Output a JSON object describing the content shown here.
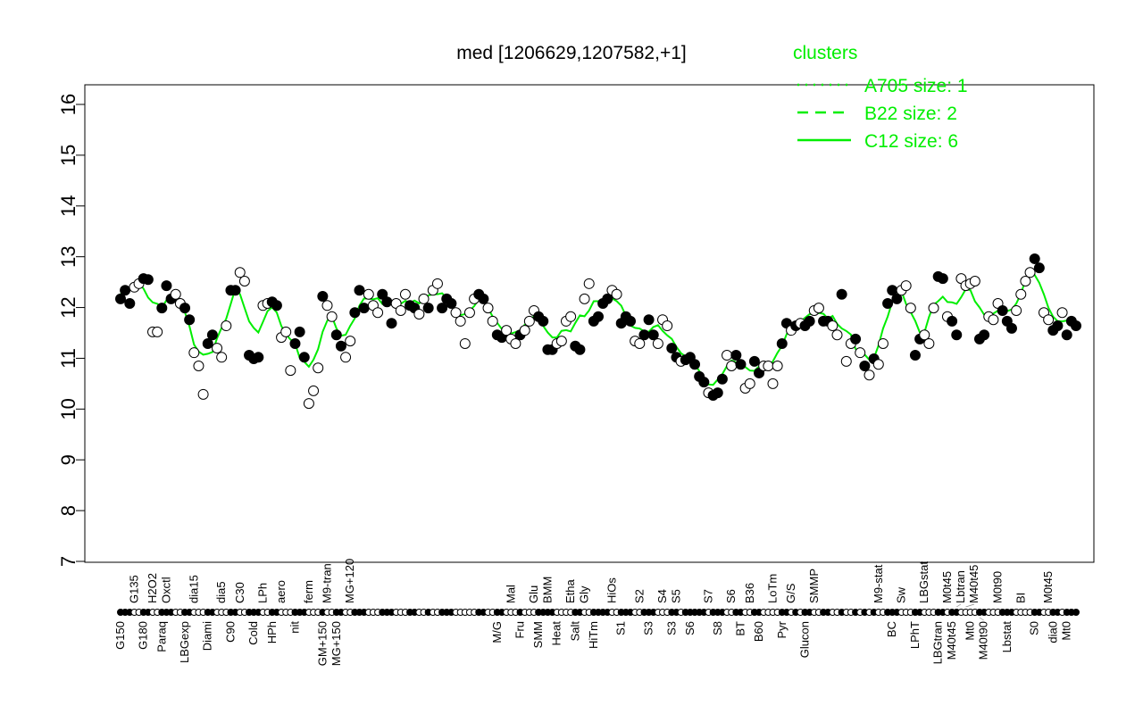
{
  "chart_data": {
    "type": "scatter",
    "title": "med [1206629,1207582,+1]",
    "xlabel": "",
    "ylabel": "",
    "ylim": [
      7,
      16
    ],
    "yticks": [
      7,
      8,
      9,
      10,
      11,
      12,
      13,
      14,
      15,
      16
    ],
    "grid": false,
    "legend": {
      "title": "clusters",
      "placement": "top-right",
      "color": "#00ee00",
      "entries": [
        {
          "label": "A705 size: 1",
          "style": "dotted"
        },
        {
          "label": "B22 size: 2",
          "style": "dashed"
        },
        {
          "label": "C12 size: 6",
          "style": "solid"
        }
      ]
    },
    "line_color": "#00ee00",
    "points": [
      {
        "v": 12.17,
        "f": 1,
        "b": "G150"
      },
      {
        "v": 12.34,
        "f": 1
      },
      {
        "v": 12.08,
        "f": 1
      },
      {
        "v": 12.4,
        "f": 0,
        "t": "G135"
      },
      {
        "v": 12.47,
        "f": 0
      },
      {
        "v": 12.57,
        "f": 1,
        "b": "G180"
      },
      {
        "v": 12.55,
        "f": 1
      },
      {
        "v": 11.52,
        "f": 0,
        "t": "H2O2"
      },
      {
        "v": 11.52,
        "f": 0
      },
      {
        "v": 11.99,
        "f": 1,
        "b": "Paraq"
      },
      {
        "v": 12.43,
        "f": 1,
        "t": "Oxctl"
      },
      {
        "v": 12.17,
        "f": 1
      },
      {
        "v": 12.26,
        "f": 0
      },
      {
        "v": 12.08,
        "f": 0
      },
      {
        "v": 11.99,
        "f": 1,
        "b": "LBGexp"
      },
      {
        "v": 11.76,
        "f": 1
      },
      {
        "v": 11.11,
        "f": 0,
        "t": "dia15"
      },
      {
        "v": 10.85,
        "f": 0
      },
      {
        "v": 10.29,
        "f": 0
      },
      {
        "v": 11.29,
        "f": 1,
        "b": "Diami"
      },
      {
        "v": 11.46,
        "f": 1
      },
      {
        "v": 11.2,
        "f": 0
      },
      {
        "v": 11.02,
        "f": 0,
        "t": "dia5"
      },
      {
        "v": 11.64,
        "f": 0
      },
      {
        "v": 12.34,
        "f": 1,
        "b": "C90"
      },
      {
        "v": 12.34,
        "f": 1
      },
      {
        "v": 12.69,
        "f": 0,
        "t": "C30"
      },
      {
        "v": 12.52,
        "f": 0
      },
      {
        "v": 11.06,
        "f": 1
      },
      {
        "v": 10.99,
        "f": 1,
        "b": "Cold"
      },
      {
        "v": 11.02,
        "f": 1
      },
      {
        "v": 12.04,
        "f": 0,
        "t": "LPh"
      },
      {
        "v": 12.08,
        "f": 0
      },
      {
        "v": 12.11,
        "f": 1,
        "b": "HPh"
      },
      {
        "v": 12.04,
        "f": 1
      },
      {
        "v": 11.41,
        "f": 0,
        "t": "aero"
      },
      {
        "v": 11.52,
        "f": 0
      },
      {
        "v": 10.76,
        "f": 0
      },
      {
        "v": 11.29,
        "f": 1,
        "b": "nit"
      },
      {
        "v": 11.52,
        "f": 1
      },
      {
        "v": 11.02,
        "f": 1
      },
      {
        "v": 10.11,
        "f": 0,
        "t": "ferm"
      },
      {
        "v": 10.36,
        "f": 0
      },
      {
        "v": 10.81,
        "f": 0
      },
      {
        "v": 12.22,
        "f": 1,
        "b": "GM+150"
      },
      {
        "v": 12.04,
        "f": 0,
        "t": "M9-tran"
      },
      {
        "v": 11.82,
        "f": 0
      },
      {
        "v": 11.46,
        "f": 1,
        "b": "MG+150"
      },
      {
        "v": 11.24,
        "f": 1
      },
      {
        "v": 11.02,
        "f": 0
      },
      {
        "v": 11.34,
        "f": 0,
        "t": "MG+120"
      },
      {
        "v": 11.9,
        "f": 1
      },
      {
        "v": 12.34,
        "f": 1
      },
      {
        "v": 11.99,
        "f": 1
      },
      {
        "v": 12.26,
        "f": 0
      },
      {
        "v": 12.04,
        "f": 0
      },
      {
        "v": 11.9,
        "f": 0
      },
      {
        "v": 12.26,
        "f": 1
      },
      {
        "v": 12.11,
        "f": 1
      },
      {
        "v": 11.69,
        "f": 1
      },
      {
        "v": 12.08,
        "f": 0
      },
      {
        "v": 11.94,
        "f": 0
      },
      {
        "v": 12.26,
        "f": 0
      },
      {
        "v": 12.04,
        "f": 1
      },
      {
        "v": 11.99,
        "f": 1
      },
      {
        "v": 11.87,
        "f": 0
      },
      {
        "v": 12.17,
        "f": 0
      },
      {
        "v": 11.99,
        "f": 1
      },
      {
        "v": 12.34,
        "f": 0
      },
      {
        "v": 12.47,
        "f": 0
      },
      {
        "v": 11.99,
        "f": 1
      },
      {
        "v": 12.17,
        "f": 1
      },
      {
        "v": 12.08,
        "f": 1
      },
      {
        "v": 11.9,
        "f": 0
      },
      {
        "v": 11.73,
        "f": 0
      },
      {
        "v": 11.29,
        "f": 0
      },
      {
        "v": 11.9,
        "f": 0
      },
      {
        "v": 12.17,
        "f": 0
      },
      {
        "v": 12.26,
        "f": 1
      },
      {
        "v": 12.17,
        "f": 1
      },
      {
        "v": 11.99,
        "f": 0
      },
      {
        "v": 11.73,
        "f": 0
      },
      {
        "v": 11.46,
        "f": 1,
        "b": "M/G"
      },
      {
        "v": 11.41,
        "f": 1
      },
      {
        "v": 11.55,
        "f": 0
      },
      {
        "v": 11.38,
        "f": 0,
        "t": "Mal"
      },
      {
        "v": 11.29,
        "f": 0
      },
      {
        "v": 11.46,
        "f": 1,
        "b": "Fru"
      },
      {
        "v": 11.55,
        "f": 0
      },
      {
        "v": 11.73,
        "f": 0
      },
      {
        "v": 11.94,
        "f": 0,
        "t": "Glu"
      },
      {
        "v": 11.82,
        "f": 1,
        "b": "SMM"
      },
      {
        "v": 11.73,
        "f": 1
      },
      {
        "v": 11.17,
        "f": 1,
        "t": "BMM"
      },
      {
        "v": 11.17,
        "f": 1
      },
      {
        "v": 11.29,
        "f": 0,
        "b": "Heat"
      },
      {
        "v": 11.34,
        "f": 0
      },
      {
        "v": 11.73,
        "f": 0
      },
      {
        "v": 11.82,
        "f": 0,
        "t": "Etha"
      },
      {
        "v": 11.24,
        "f": 1,
        "b": "Salt"
      },
      {
        "v": 11.17,
        "f": 1
      },
      {
        "v": 12.17,
        "f": 0,
        "t": "Gly"
      },
      {
        "v": 12.47,
        "f": 0
      },
      {
        "v": 11.73,
        "f": 1,
        "b": "HiTm"
      },
      {
        "v": 11.82,
        "f": 1
      },
      {
        "v": 12.08,
        "f": 1
      },
      {
        "v": 12.17,
        "f": 1
      },
      {
        "v": 12.34,
        "f": 0,
        "t": "HiOs"
      },
      {
        "v": 12.26,
        "f": 0
      },
      {
        "v": 11.69,
        "f": 1,
        "b": "S1"
      },
      {
        "v": 11.82,
        "f": 1
      },
      {
        "v": 11.73,
        "f": 1
      },
      {
        "v": 11.34,
        "f": 0
      },
      {
        "v": 11.29,
        "f": 0,
        "t": "S2"
      },
      {
        "v": 11.46,
        "f": 1
      },
      {
        "v": 11.76,
        "f": 1,
        "b": "S3"
      },
      {
        "v": 11.46,
        "f": 1
      },
      {
        "v": 11.29,
        "f": 0
      },
      {
        "v": 11.76,
        "f": 0,
        "t": "S4"
      },
      {
        "v": 11.64,
        "f": 0
      },
      {
        "v": 11.2,
        "f": 1,
        "b": "S3"
      },
      {
        "v": 11.02,
        "f": 1,
        "t": "S5"
      },
      {
        "v": 10.94,
        "f": 0
      },
      {
        "v": 10.97,
        "f": 1
      },
      {
        "v": 11.02,
        "f": 1,
        "b": "S6"
      },
      {
        "v": 10.88,
        "f": 1
      },
      {
        "v": 10.64,
        "f": 1
      },
      {
        "v": 10.53,
        "f": 1
      },
      {
        "v": 10.32,
        "f": 0,
        "t": "S7"
      },
      {
        "v": 10.27,
        "f": 1
      },
      {
        "v": 10.32,
        "f": 1,
        "b": "S8"
      },
      {
        "v": 10.59,
        "f": 1
      },
      {
        "v": 11.06,
        "f": 0
      },
      {
        "v": 10.85,
        "f": 0,
        "t": "S6"
      },
      {
        "v": 11.06,
        "f": 1
      },
      {
        "v": 10.88,
        "f": 1,
        "b": "BT"
      },
      {
        "v": 10.41,
        "f": 0
      },
      {
        "v": 10.5,
        "f": 0,
        "t": "B36"
      },
      {
        "v": 10.94,
        "f": 1
      },
      {
        "v": 10.71,
        "f": 1,
        "b": "B60"
      },
      {
        "v": 10.85,
        "f": 0
      },
      {
        "v": 10.85,
        "f": 0
      },
      {
        "v": 10.5,
        "f": 0,
        "t": "LoTm"
      },
      {
        "v": 10.85,
        "f": 0
      },
      {
        "v": 11.29,
        "f": 1,
        "b": "Pyr"
      },
      {
        "v": 11.69,
        "f": 1
      },
      {
        "v": 11.55,
        "f": 0,
        "t": "G/S"
      },
      {
        "v": 11.64,
        "f": 1
      },
      {
        "v": 11.69,
        "f": 0
      },
      {
        "v": 11.64,
        "f": 1,
        "b": "Glucon"
      },
      {
        "v": 11.73,
        "f": 1
      },
      {
        "v": 11.94,
        "f": 0,
        "t": "SMMP"
      },
      {
        "v": 11.99,
        "f": 0
      },
      {
        "v": 11.73,
        "f": 1
      },
      {
        "v": 11.73,
        "f": 1
      },
      {
        "v": 11.64,
        "f": 0
      },
      {
        "v": 11.46,
        "f": 0
      },
      {
        "v": 12.26,
        "f": 1
      },
      {
        "v": 10.94,
        "f": 0
      },
      {
        "v": 11.29,
        "f": 0
      },
      {
        "v": 11.38,
        "f": 1
      },
      {
        "v": 11.11,
        "f": 0
      },
      {
        "v": 10.85,
        "f": 1
      },
      {
        "v": 10.67,
        "f": 0
      },
      {
        "v": 10.99,
        "f": 1
      },
      {
        "v": 10.88,
        "f": 0,
        "t": "M9-stat"
      },
      {
        "v": 11.29,
        "f": 0
      },
      {
        "v": 12.08,
        "f": 1
      },
      {
        "v": 12.34,
        "f": 1,
        "b": "BC"
      },
      {
        "v": 12.17,
        "f": 1
      },
      {
        "v": 12.34,
        "f": 0,
        "t": "Sw"
      },
      {
        "v": 12.43,
        "f": 0
      },
      {
        "v": 11.99,
        "f": 0
      },
      {
        "v": 11.06,
        "f": 1,
        "b": "LPhT"
      },
      {
        "v": 11.38,
        "f": 1
      },
      {
        "v": 11.46,
        "f": 0,
        "t": "LBGstat"
      },
      {
        "v": 11.29,
        "f": 0
      },
      {
        "v": 11.99,
        "f": 0
      },
      {
        "v": 12.61,
        "f": 1,
        "b": "LBGtran"
      },
      {
        "v": 12.57,
        "f": 1
      },
      {
        "v": 11.82,
        "f": 0,
        "t": "M0t45"
      },
      {
        "v": 11.73,
        "f": 1,
        "b": "M40t45"
      },
      {
        "v": 11.46,
        "f": 1,
        "t": "Lbtran"
      },
      {
        "v": 12.57,
        "f": 0
      },
      {
        "v": 12.43,
        "f": 0,
        "t": "M40t45"
      },
      {
        "v": 12.47,
        "f": 0,
        "b": "Mt0"
      },
      {
        "v": 12.52,
        "f": 0
      },
      {
        "v": 11.38,
        "f": 1,
        "b": "M40t90"
      },
      {
        "v": 11.46,
        "f": 1
      },
      {
        "v": 11.82,
        "f": 0
      },
      {
        "v": 11.76,
        "f": 0
      },
      {
        "v": 12.08,
        "f": 0,
        "t": "M0t90"
      },
      {
        "v": 11.94,
        "f": 1
      },
      {
        "v": 11.73,
        "f": 1,
        "b": "Lbstat"
      },
      {
        "v": 11.59,
        "f": 1
      },
      {
        "v": 11.94,
        "f": 0
      },
      {
        "v": 12.26,
        "f": 0,
        "t": "BI"
      },
      {
        "v": 12.52,
        "f": 0
      },
      {
        "v": 12.69,
        "f": 0
      },
      {
        "v": 12.96,
        "f": 1,
        "b": "S0"
      },
      {
        "v": 12.78,
        "f": 1
      },
      {
        "v": 11.9,
        "f": 0
      },
      {
        "v": 11.76,
        "f": 0,
        "t": "M0t45"
      },
      {
        "v": 11.55,
        "f": 1,
        "b": "dia0"
      },
      {
        "v": 11.64,
        "f": 1
      },
      {
        "v": 11.9,
        "f": 0
      },
      {
        "v": 11.46,
        "f": 1,
        "b": "Mt0"
      },
      {
        "v": 11.73,
        "f": 1
      },
      {
        "v": 11.64,
        "f": 1
      }
    ]
  }
}
